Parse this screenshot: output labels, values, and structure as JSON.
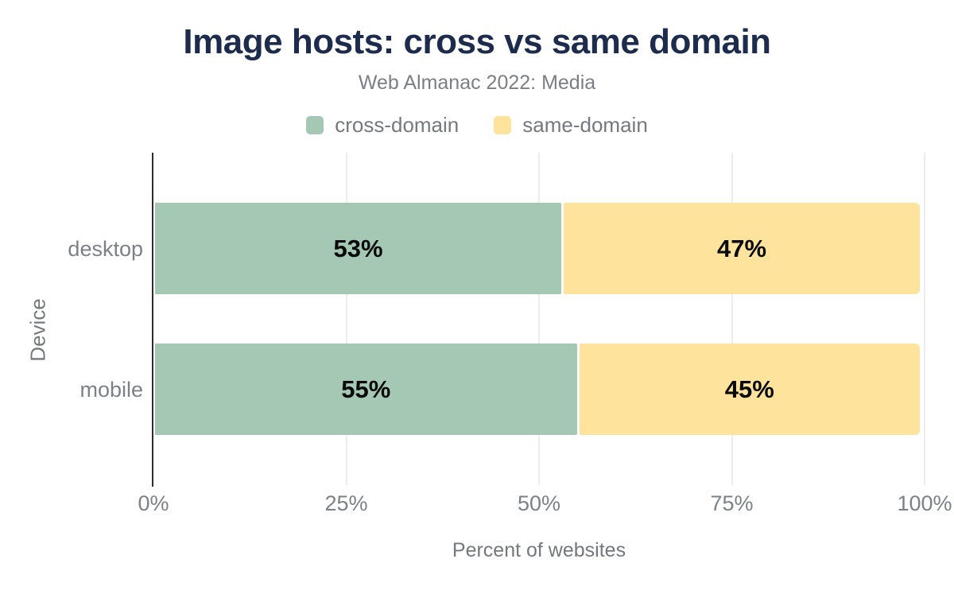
{
  "title": "Image hosts: cross vs same domain",
  "subtitle": "Web Almanac 2022: Media",
  "colors": {
    "title": "#1d2b4d",
    "muted_text": "#7c8087",
    "cross_domain": "#a5c8b5",
    "same_domain": "#fde39c",
    "bar_value_text": "#0a0a0a",
    "axis_line": "#2d2d2d",
    "gridline": "#ededed",
    "background": "#ffffff"
  },
  "legend": [
    {
      "label": "cross-domain",
      "color": "#a5c8b5"
    },
    {
      "label": "same-domain",
      "color": "#fde39c"
    }
  ],
  "chart_data": {
    "type": "bar",
    "orientation": "horizontal",
    "stacked": true,
    "title": "Image hosts: cross vs same domain",
    "subtitle": "Web Almanac 2022: Media",
    "xlabel": "Percent of websites",
    "ylabel": "Device",
    "categories": [
      "desktop",
      "mobile"
    ],
    "series": [
      {
        "name": "cross-domain",
        "color": "#a5c8b5",
        "values": [
          53,
          55
        ]
      },
      {
        "name": "same-domain",
        "color": "#fde39c",
        "values": [
          47,
          45
        ]
      }
    ],
    "bar_labels": [
      [
        "53%",
        "47%"
      ],
      [
        "55%",
        "45%"
      ]
    ],
    "xlim": [
      0,
      100
    ],
    "xtick_values": [
      0,
      25,
      50,
      75,
      100
    ],
    "xtick_labels": [
      "0%",
      "25%",
      "50%",
      "75%",
      "100%"
    ],
    "grid": true,
    "legend_position": "top"
  }
}
